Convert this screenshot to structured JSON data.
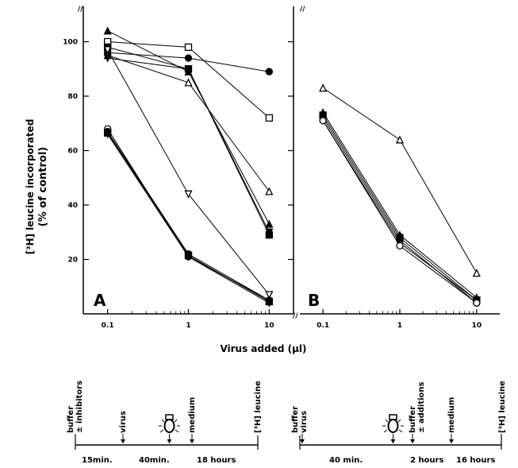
{
  "chart_data": [
    {
      "type": "line",
      "panel_label": "A",
      "x_scale": "log",
      "x": [
        0.1,
        1,
        10
      ],
      "x_tick_labels": [
        "0.1",
        "1",
        "10"
      ],
      "xlim": [
        0.05,
        20
      ],
      "ylim": [
        0,
        113
      ],
      "y_ticks": [
        20,
        40,
        60,
        80,
        100
      ],
      "y_tick_labels": [
        "20",
        "40",
        "60",
        "80",
        "100"
      ],
      "ylabel_line1": "[³H] leucine incorporated",
      "ylabel_line2": "(% of control)",
      "xlabel": "Virus added (µl)",
      "series": [
        {
          "marker": "filled-circle",
          "values": [
            96,
            94,
            89
          ]
        },
        {
          "marker": "open-square",
          "values": [
            100,
            98,
            72
          ]
        },
        {
          "marker": "filled-triangle",
          "values": [
            104,
            89,
            33
          ]
        },
        {
          "marker": "open-triangle",
          "values": [
            95,
            85,
            45
          ]
        },
        {
          "marker": "filled-square",
          "values": [
            98,
            90,
            29
          ]
        },
        {
          "marker": "filled-triangle-down",
          "values": [
            94,
            90,
            30
          ]
        },
        {
          "marker": "open-triangle-down",
          "values": [
            97,
            44,
            7
          ]
        },
        {
          "marker": "open-circle",
          "values": [
            68,
            21,
            5
          ]
        },
        {
          "marker": "filled-triangle-down",
          "values": [
            66,
            21,
            4
          ]
        },
        {
          "marker": "filled-circle",
          "values": [
            67,
            22,
            5
          ]
        },
        {
          "marker": "filled-square",
          "values": [
            66.5,
            21.5,
            4.5
          ]
        }
      ]
    },
    {
      "type": "line",
      "panel_label": "B",
      "x_scale": "log",
      "x": [
        0.1,
        1,
        10
      ],
      "x_tick_labels": [
        "0.1",
        "1",
        "10"
      ],
      "xlim": [
        0.05,
        20
      ],
      "ylim": [
        0,
        113
      ],
      "series": [
        {
          "marker": "open-triangle",
          "values": [
            83,
            64,
            15
          ]
        },
        {
          "marker": "filled-triangle",
          "values": [
            74,
            29,
            6
          ]
        },
        {
          "marker": "filled-square",
          "values": [
            73,
            28,
            5
          ]
        },
        {
          "marker": "filled-circle",
          "values": [
            72,
            27,
            4
          ]
        },
        {
          "marker": "filled-triangle-down",
          "values": [
            71,
            26,
            5
          ]
        },
        {
          "marker": "open-circle",
          "values": [
            71,
            25,
            4
          ]
        }
      ]
    }
  ],
  "axis_break_mark": "//",
  "timelines": [
    {
      "events": [
        "buffer\n± inhibitors",
        "virus",
        "lamp",
        "medium",
        "[³H] leucine"
      ],
      "intervals": [
        "15min.",
        "40min.",
        "18 hours"
      ]
    },
    {
      "events": [
        "buffer\nvirus",
        "lamp",
        "buffer\n± additions",
        "medium",
        "[³H] leucine"
      ],
      "intervals": [
        "40 min.",
        "2 hours",
        "16 hours"
      ]
    }
  ]
}
